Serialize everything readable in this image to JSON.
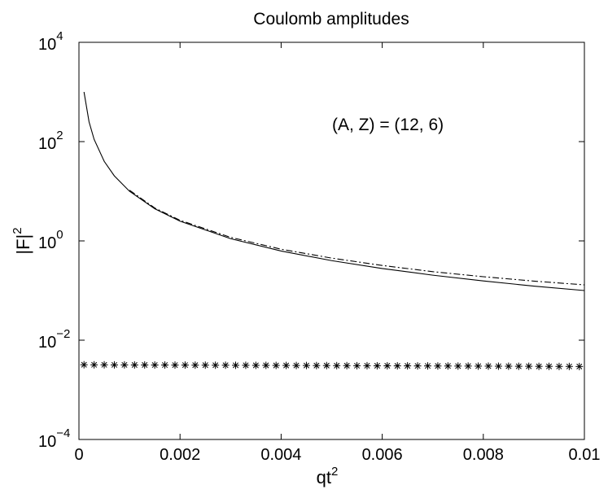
{
  "chart_data": {
    "type": "line",
    "title": "Coulomb amplitudes",
    "xlabel": "qt",
    "xlabel_sup": "2",
    "ylabel": "|F|",
    "ylabel_sup": "2",
    "xlim": [
      0,
      0.01
    ],
    "ylim": [
      0.0001,
      10000
    ],
    "yscale": "log",
    "grid": false,
    "x_ticks": [
      {
        "value": 0,
        "label": "0"
      },
      {
        "value": 0.002,
        "label": "0.002"
      },
      {
        "value": 0.004,
        "label": "0.004"
      },
      {
        "value": 0.006,
        "label": "0.006"
      },
      {
        "value": 0.008,
        "label": "0.008"
      },
      {
        "value": 0.01,
        "label": "0.01"
      }
    ],
    "y_ticks": [
      {
        "value": 0.0001,
        "base": "10",
        "exp": "−4"
      },
      {
        "value": 0.01,
        "base": "10",
        "exp": "−2"
      },
      {
        "value": 1,
        "base": "10",
        "exp": "0"
      },
      {
        "value": 100,
        "base": "10",
        "exp": "2"
      },
      {
        "value": 10000,
        "base": "10",
        "exp": "4"
      }
    ],
    "annotation": "(A, Z) = (12, 6)",
    "series": [
      {
        "style": "solid",
        "color": "#000000",
        "x": [
          0.0001,
          0.0002,
          0.0003,
          0.0005,
          0.0007,
          0.001,
          0.0015,
          0.002,
          0.003,
          0.004,
          0.005,
          0.006,
          0.007,
          0.008,
          0.009,
          0.01
        ],
        "y": [
          1000,
          250,
          111,
          40,
          20.4,
          10,
          4.44,
          2.5,
          1.11,
          0.625,
          0.4,
          0.278,
          0.204,
          0.156,
          0.123,
          0.1
        ]
      },
      {
        "style": "dashdot",
        "color": "#000000",
        "x": [
          0.001,
          0.0015,
          0.002,
          0.003,
          0.004,
          0.005,
          0.006,
          0.007,
          0.008,
          0.009,
          0.01
        ],
        "y": [
          10.5,
          4.6,
          2.6,
          1.18,
          0.68,
          0.45,
          0.32,
          0.24,
          0.19,
          0.155,
          0.13
        ]
      },
      {
        "style": "markers",
        "marker": "asterisk",
        "color": "#000000",
        "x": [
          0.0001,
          0.0003,
          0.0005,
          0.0007,
          0.0009,
          0.0011,
          0.0013,
          0.0015,
          0.0017,
          0.0019,
          0.0021,
          0.0023,
          0.0025,
          0.0027,
          0.0029,
          0.0031,
          0.0033,
          0.0035,
          0.0037,
          0.0039,
          0.0041,
          0.0043,
          0.0045,
          0.0047,
          0.0049,
          0.0051,
          0.0053,
          0.0055,
          0.0057,
          0.0059,
          0.0061,
          0.0063,
          0.0065,
          0.0067,
          0.0069,
          0.0071,
          0.0073,
          0.0075,
          0.0077,
          0.0079,
          0.0081,
          0.0083,
          0.0085,
          0.0087,
          0.0089,
          0.0091,
          0.0093,
          0.0095,
          0.0097,
          0.0099
        ],
        "y": [
          0.0032,
          0.00319,
          0.00319,
          0.00318,
          0.00318,
          0.00317,
          0.00317,
          0.00316,
          0.00316,
          0.00315,
          0.00315,
          0.00314,
          0.00314,
          0.00313,
          0.00313,
          0.00312,
          0.00312,
          0.00311,
          0.00311,
          0.0031,
          0.0031,
          0.00309,
          0.00309,
          0.00308,
          0.00308,
          0.00307,
          0.00307,
          0.00306,
          0.00306,
          0.00305,
          0.00305,
          0.00304,
          0.00304,
          0.00303,
          0.00303,
          0.00302,
          0.00302,
          0.00301,
          0.00301,
          0.003,
          0.003,
          0.00299,
          0.00299,
          0.00298,
          0.00298,
          0.00297,
          0.00297,
          0.00296,
          0.00296,
          0.00295
        ]
      }
    ]
  }
}
